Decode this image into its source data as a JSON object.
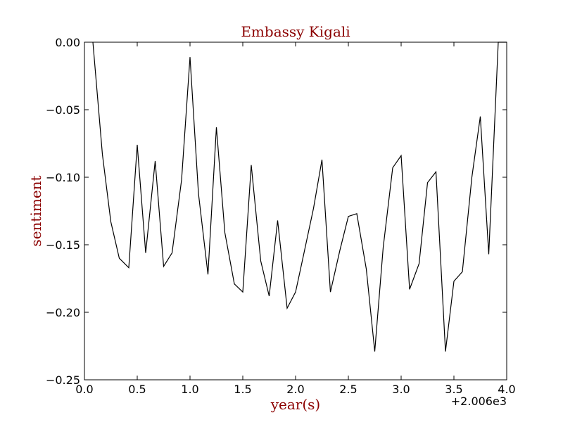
{
  "chart_data": {
    "type": "line",
    "title": "Embassy Kigali",
    "xlabel": "year(s)",
    "ylabel": "sentiment",
    "x_offset_label": "+2.006e3",
    "xlim": [
      0.0,
      4.0
    ],
    "ylim": [
      -0.25,
      0.0
    ],
    "x_tick_labels": [
      "0.0",
      "0.5",
      "1.0",
      "1.5",
      "2.0",
      "2.5",
      "3.0",
      "3.5",
      "4.0"
    ],
    "y_tick_labels": [
      "0.00",
      "−0.05",
      "−0.10",
      "−0.15",
      "−0.20",
      "−0.25"
    ],
    "grid": false,
    "colors": {
      "title": "#8b0000",
      "axis_label": "#8b0000",
      "line": "#000000"
    },
    "series": [
      {
        "x": [
          0.08,
          0.17,
          0.25,
          0.33,
          0.42,
          0.5,
          0.58,
          0.67,
          0.75,
          0.83,
          0.92,
          1.0,
          1.08,
          1.17,
          1.25,
          1.33,
          1.42,
          1.5,
          1.58,
          1.67,
          1.75,
          1.83,
          1.92,
          2.0,
          2.08,
          2.17,
          2.25,
          2.33,
          2.42,
          2.5,
          2.58,
          2.67,
          2.75,
          2.83,
          2.92,
          3.0,
          3.08,
          3.17,
          3.25,
          3.33,
          3.42,
          3.5,
          3.58,
          3.67,
          3.75,
          3.83,
          3.92,
          4.0
        ],
        "y": [
          0.0,
          -0.083,
          -0.133,
          -0.16,
          -0.167,
          -0.076,
          -0.156,
          -0.088,
          -0.166,
          -0.156,
          -0.102,
          -0.011,
          -0.112,
          -0.172,
          -0.063,
          -0.141,
          -0.179,
          -0.185,
          -0.091,
          -0.162,
          -0.188,
          -0.132,
          -0.197,
          -0.185,
          -0.156,
          -0.123,
          -0.087,
          -0.185,
          -0.154,
          -0.129,
          -0.127,
          -0.168,
          -0.229,
          -0.152,
          -0.093,
          -0.084,
          -0.183,
          -0.164,
          -0.104,
          -0.096,
          -0.229,
          -0.177,
          -0.17,
          -0.1,
          -0.055,
          -0.157,
          0.0,
          0.0
        ]
      }
    ]
  }
}
